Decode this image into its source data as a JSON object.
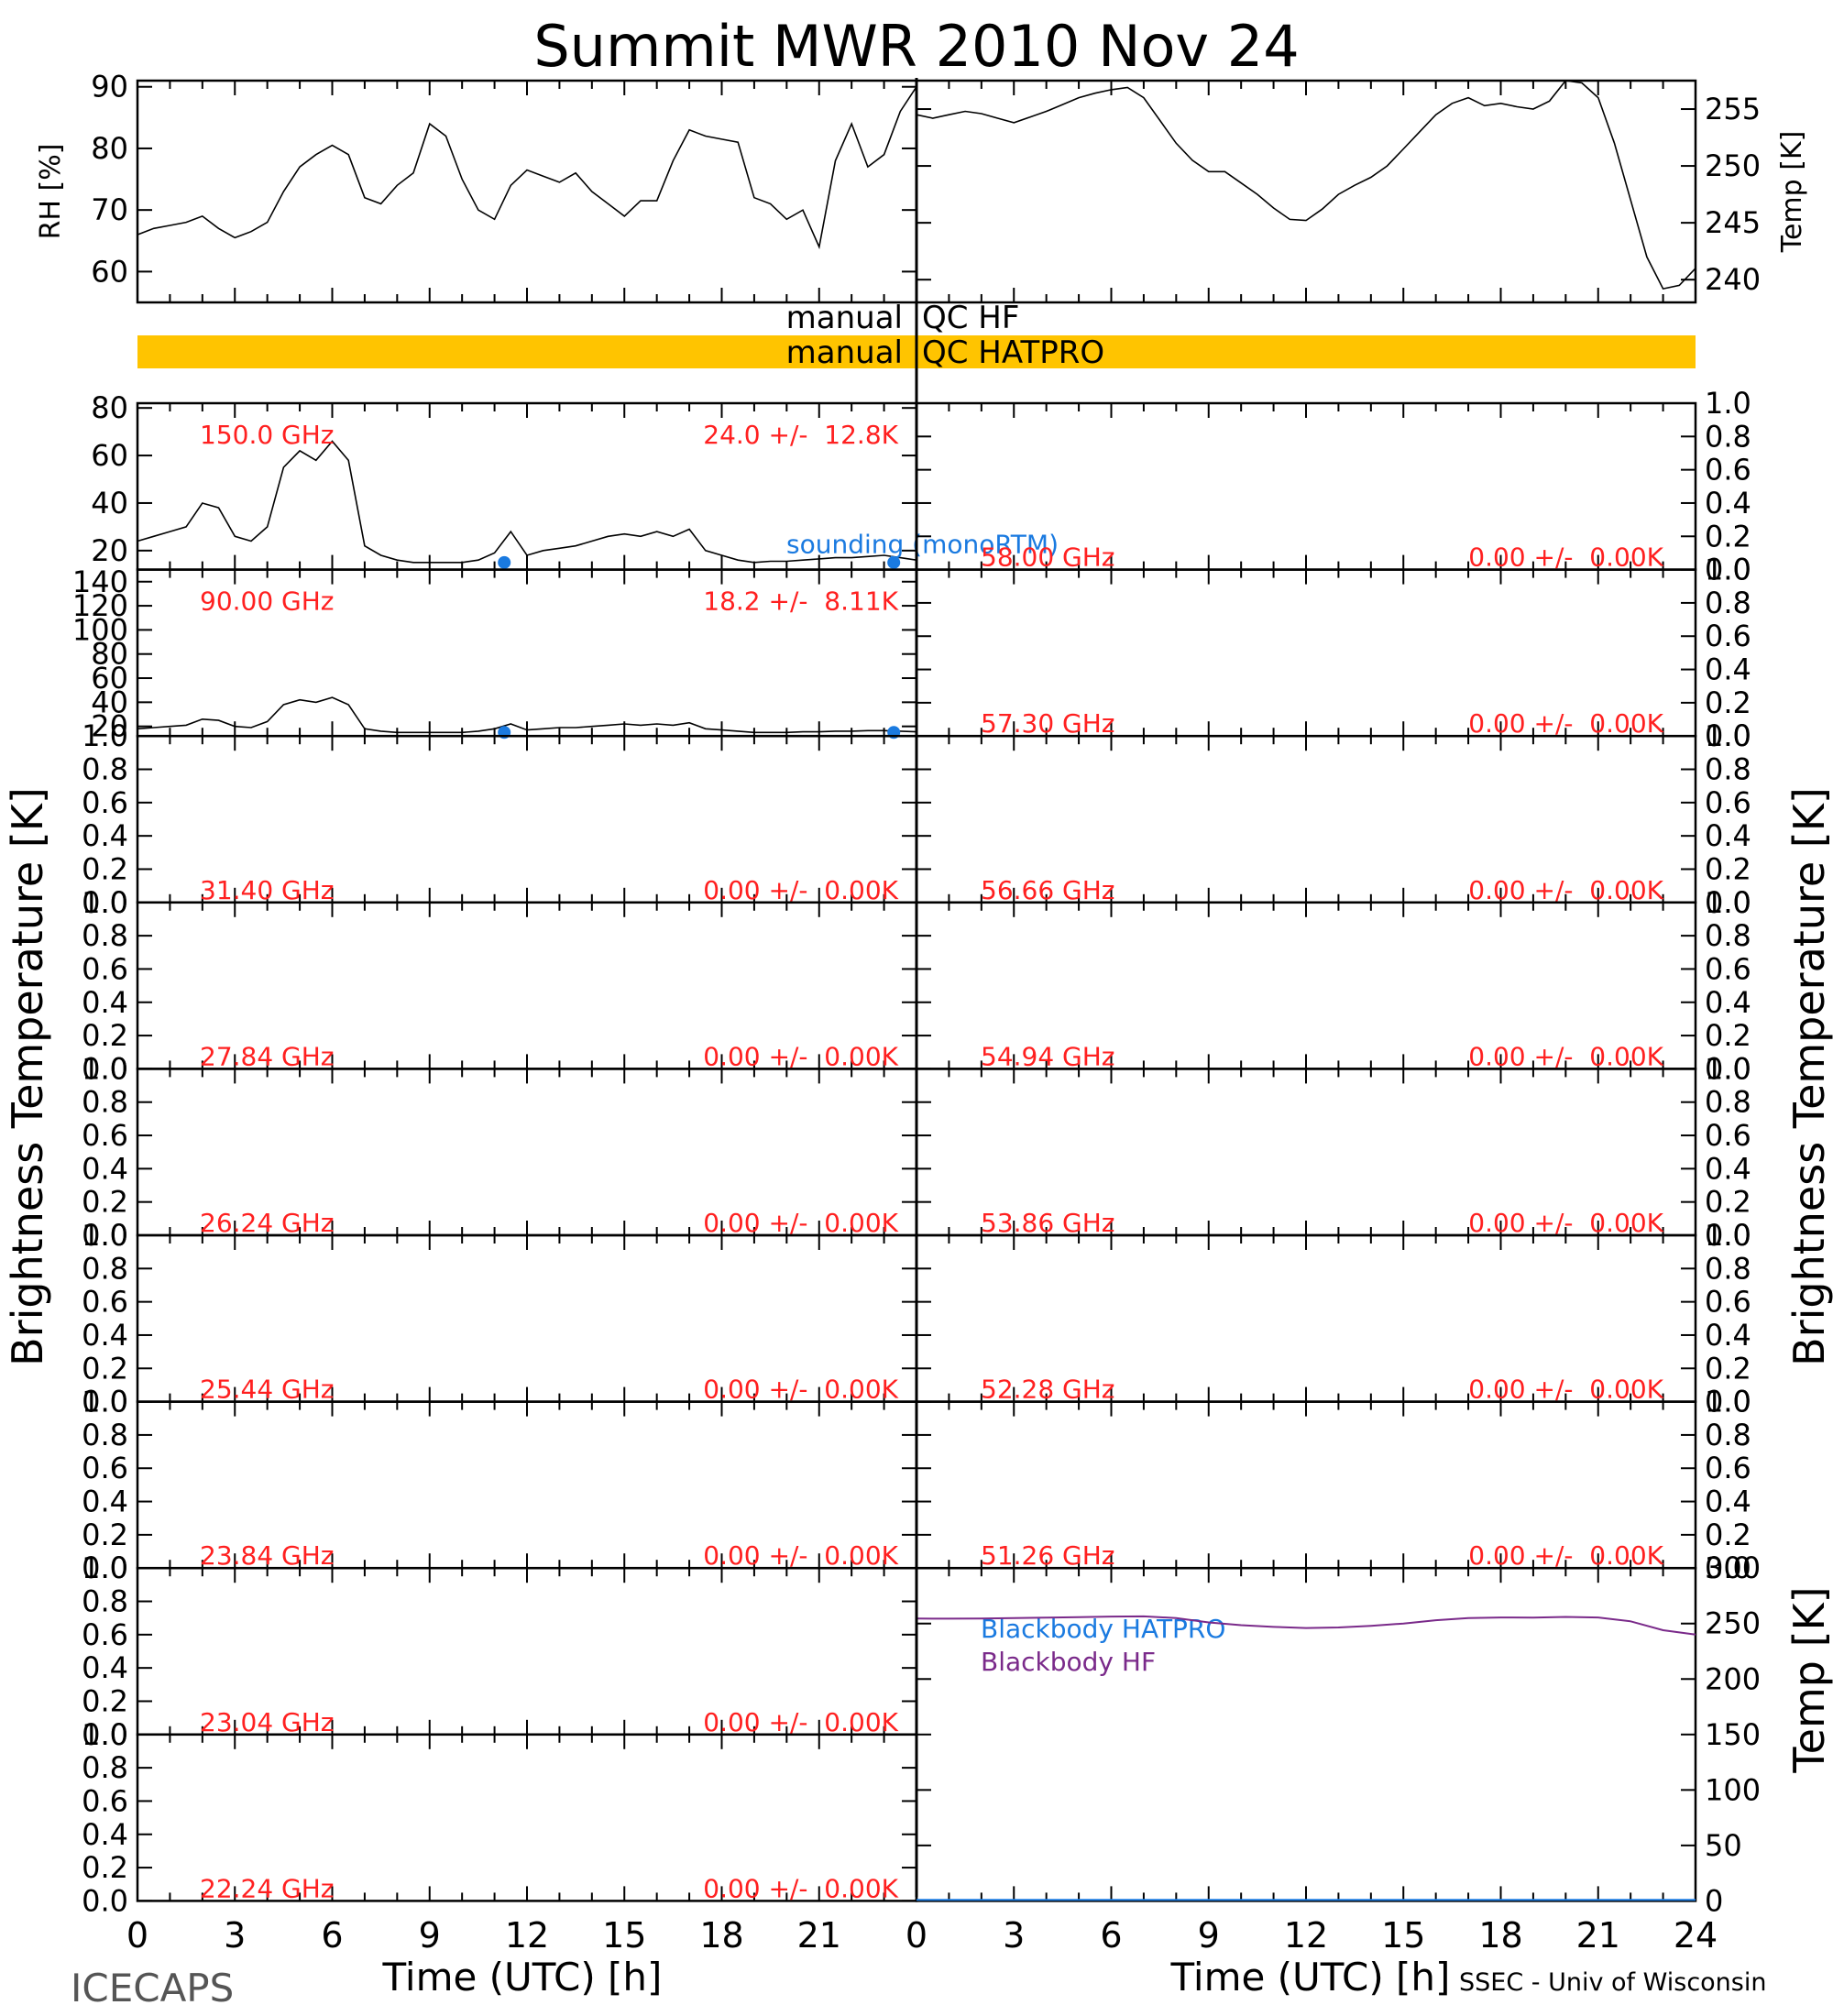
{
  "title": "Summit MWR 2010 Nov 24",
  "footer": {
    "left": "ICECAPS",
    "right": "SSEC - Univ of Wisconsin",
    "xlabel_left": "Time (UTC) [h]",
    "xlabel_right": "Time (UTC) [h]"
  },
  "colors": {
    "stat_text": "#ff2020",
    "sounding": "#1a7ae0",
    "bb_hatpro": "#1a7ae0",
    "bb_hf": "#7a2a8a",
    "qc_bar": "#ffc400"
  },
  "qc": {
    "row1_left": "manual",
    "row1_right": "QC HF",
    "row2_left": "manual",
    "row2_right": "QC HATPRO"
  },
  "side_labels": {
    "left": "Brightness Temperature [K]",
    "right": "Brightness Temperature [K]",
    "right_bottom": "Temp [K]"
  },
  "chart_data": [
    {
      "id": "rh",
      "type": "line",
      "ylabel": "RH [%]",
      "xlim": [
        0,
        24
      ],
      "ylim": [
        55,
        91
      ],
      "yticks": [
        60,
        70,
        80,
        90
      ],
      "x": [
        0,
        0.5,
        1,
        1.5,
        2,
        2.5,
        3,
        3.5,
        4,
        4.5,
        5,
        5.5,
        6,
        6.5,
        7,
        7.5,
        8,
        8.5,
        9,
        9.5,
        10,
        10.5,
        11,
        11.5,
        12,
        12.5,
        13,
        13.5,
        14,
        14.5,
        15,
        15.5,
        16,
        16.5,
        17,
        17.5,
        18,
        18.5,
        19,
        19.5,
        20,
        20.5,
        21,
        21.5,
        22,
        22.5,
        23,
        23.5,
        24
      ],
      "y": [
        66,
        67,
        67.5,
        68,
        69,
        67,
        65.5,
        66.5,
        68,
        73,
        77,
        79,
        80.5,
        79,
        72,
        71,
        74,
        76,
        84,
        82,
        75,
        70,
        68.5,
        74,
        76.5,
        75.5,
        74.5,
        76,
        73,
        71,
        69,
        71.5,
        71.5,
        78,
        83,
        82,
        81.5,
        81,
        72,
        71,
        68.5,
        70,
        64,
        78,
        84,
        77,
        79,
        86,
        90
      ]
    },
    {
      "id": "temp",
      "type": "line",
      "ylabel": "Temp [K]",
      "xlim": [
        0,
        24
      ],
      "ylim": [
        238,
        257.5
      ],
      "yticks": [
        240,
        245,
        250,
        255
      ],
      "x": [
        0,
        0.5,
        1,
        1.5,
        2,
        2.5,
        3,
        3.5,
        4,
        4.5,
        5,
        5.5,
        6,
        6.5,
        7,
        7.5,
        8,
        8.5,
        9,
        9.5,
        10,
        10.5,
        11,
        11.5,
        12,
        12.5,
        13,
        13.5,
        14,
        14.5,
        15,
        15.5,
        16,
        16.5,
        17,
        17.5,
        18,
        18.5,
        19,
        19.5,
        20,
        20.5,
        21,
        21.5,
        22,
        22.5,
        23,
        23.5,
        24
      ],
      "y": [
        254.5,
        254.2,
        254.5,
        254.8,
        254.6,
        254.2,
        253.8,
        254.3,
        254.8,
        255.4,
        256,
        256.4,
        256.7,
        256.9,
        256,
        254,
        252,
        250.5,
        249.5,
        249.5,
        248.5,
        247.5,
        246.3,
        245.3,
        245.2,
        246.2,
        247.5,
        248.3,
        249,
        250,
        251.5,
        253,
        254.5,
        255.5,
        256,
        255.3,
        255.5,
        255.2,
        255,
        255.7,
        257.5,
        257.3,
        256,
        252,
        247,
        242,
        239.2,
        239.5,
        241
      ]
    },
    {
      "id": "ch-150",
      "type": "line",
      "label": "150.0 GHz",
      "stats": "24.0 +/-  12.8K",
      "xlim": [
        0,
        24
      ],
      "ylim": [
        12,
        82
      ],
      "yticks": [
        20,
        40,
        60,
        80
      ],
      "x": [
        0,
        0.5,
        1,
        1.5,
        2,
        2.5,
        3,
        3.5,
        4,
        4.5,
        5,
        5.5,
        6,
        6.5,
        7,
        7.5,
        8,
        8.5,
        9,
        9.5,
        10,
        10.5,
        11,
        11.5,
        12,
        12.5,
        13,
        13.5,
        14,
        14.5,
        15,
        15.5,
        16,
        16.5,
        17,
        17.5,
        18,
        18.5,
        19,
        19.5,
        20,
        20.5,
        21,
        21.5,
        22,
        22.5,
        23,
        23.5,
        24
      ],
      "y": [
        24,
        26,
        28,
        30,
        40,
        38,
        26,
        24,
        30,
        55,
        62,
        58,
        66,
        58,
        22,
        18,
        16,
        15,
        15,
        15,
        15,
        16,
        19,
        28,
        18,
        20,
        21,
        22,
        24,
        26,
        27,
        26,
        28,
        26,
        29,
        20,
        18,
        16,
        15,
        15.5,
        15.5,
        16,
        16.5,
        17,
        17,
        17.5,
        18,
        17,
        16
      ],
      "sounding_label": "sounding (monoRTM)",
      "sounding": {
        "x": [
          11.3,
          23.3
        ],
        "y": [
          15,
          15
        ]
      }
    },
    {
      "id": "ch-90",
      "type": "line",
      "label": "90.00 GHz",
      "stats": "18.2 +/-  8.11K",
      "xlim": [
        0,
        24
      ],
      "ylim": [
        12,
        150
      ],
      "yticks": [
        20,
        40,
        60,
        80,
        100,
        120,
        140
      ],
      "x": [
        0,
        0.5,
        1,
        1.5,
        2,
        2.5,
        3,
        3.5,
        4,
        4.5,
        5,
        5.5,
        6,
        6.5,
        7,
        7.5,
        8,
        8.5,
        9,
        9.5,
        10,
        10.5,
        11,
        11.5,
        12,
        12.5,
        13,
        13.5,
        14,
        14.5,
        15,
        15.5,
        16,
        16.5,
        17,
        17.5,
        18,
        18.5,
        19,
        19.5,
        20,
        20.5,
        21,
        21.5,
        22,
        22.5,
        23,
        23.5,
        24
      ],
      "y": [
        18,
        19,
        20,
        21,
        26,
        25,
        20,
        19,
        24,
        38,
        42,
        40,
        44,
        38,
        18,
        16,
        15,
        15,
        15,
        15,
        15,
        16,
        18,
        22,
        17,
        18,
        19,
        19,
        20,
        21,
        22,
        21,
        22,
        21,
        23,
        18,
        17,
        16,
        15,
        15,
        15,
        15.5,
        15.5,
        16,
        16,
        16.5,
        16.5,
        16,
        15.5
      ],
      "sounding": {
        "x": [
          11.3,
          23.3
        ],
        "y": [
          15,
          15
        ]
      }
    },
    {
      "id": "ch-31.40",
      "type": "line",
      "label": "31.40 GHz",
      "stats": "0.00 +/-  0.00K",
      "ylim": [
        0,
        1
      ]
    },
    {
      "id": "ch-27.84",
      "type": "line",
      "label": "27.84 GHz",
      "stats": "0.00 +/-  0.00K",
      "ylim": [
        0,
        1
      ]
    },
    {
      "id": "ch-26.24",
      "type": "line",
      "label": "26.24 GHz",
      "stats": "0.00 +/-  0.00K",
      "ylim": [
        0,
        1
      ]
    },
    {
      "id": "ch-25.44",
      "type": "line",
      "label": "25.44 GHz",
      "stats": "0.00 +/-  0.00K",
      "ylim": [
        0,
        1
      ]
    },
    {
      "id": "ch-23.84",
      "type": "line",
      "label": "23.84 GHz",
      "stats": "0.00 +/-  0.00K",
      "ylim": [
        0,
        1
      ]
    },
    {
      "id": "ch-23.04",
      "type": "line",
      "label": "23.04 GHz",
      "stats": "0.00 +/-  0.00K",
      "ylim": [
        0,
        1
      ]
    },
    {
      "id": "ch-22.24",
      "type": "line",
      "label": "22.24 GHz",
      "stats": "0.00 +/-  0.00K",
      "ylim": [
        0,
        1
      ]
    },
    {
      "id": "ch-58.00",
      "type": "line",
      "label": "58.00 GHz",
      "stats": "0.00 +/-  0.00K",
      "ylim": [
        0,
        1
      ]
    },
    {
      "id": "ch-57.30",
      "type": "line",
      "label": "57.30 GHz",
      "stats": "0.00 +/-  0.00K",
      "ylim": [
        0,
        1
      ]
    },
    {
      "id": "ch-56.66",
      "type": "line",
      "label": "56.66 GHz",
      "stats": "0.00 +/-  0.00K",
      "ylim": [
        0,
        1
      ]
    },
    {
      "id": "ch-54.94",
      "type": "line",
      "label": "54.94 GHz",
      "stats": "0.00 +/-  0.00K",
      "ylim": [
        0,
        1
      ]
    },
    {
      "id": "ch-53.86",
      "type": "line",
      "label": "53.86 GHz",
      "stats": "0.00 +/-  0.00K",
      "ylim": [
        0,
        1
      ]
    },
    {
      "id": "ch-52.28",
      "type": "line",
      "label": "52.28 GHz",
      "stats": "0.00 +/-  0.00K",
      "ylim": [
        0,
        1
      ]
    },
    {
      "id": "ch-51.26",
      "type": "line",
      "label": "51.26 GHz",
      "stats": "0.00 +/-  0.00K",
      "ylim": [
        0,
        1
      ]
    },
    {
      "id": "blackbody",
      "type": "line",
      "xlim": [
        0,
        24
      ],
      "ylim": [
        0,
        300
      ],
      "yticks": [
        0,
        50,
        100,
        150,
        200,
        250,
        300
      ],
      "series": [
        {
          "name": "Blackbody HATPRO",
          "x": [
            0,
            24
          ],
          "y": [
            1,
            1
          ]
        },
        {
          "name": "Blackbody HF",
          "x": [
            0,
            1,
            2,
            3,
            4,
            5,
            6,
            7,
            8,
            9,
            10,
            11,
            12,
            13,
            14,
            15,
            16,
            17,
            18,
            19,
            20,
            21,
            22,
            23,
            24
          ],
          "y": [
            254.5,
            254.4,
            254.6,
            254.9,
            255.3,
            255.8,
            256.3,
            256.5,
            255,
            251,
            248.5,
            247,
            246,
            246.5,
            248,
            250,
            253,
            255,
            255.5,
            255.4,
            256,
            255.5,
            252,
            244,
            240
          ]
        }
      ]
    }
  ],
  "x_axis": {
    "ticks": [
      "0",
      "3",
      "6",
      "9",
      "12",
      "15",
      "18",
      "21"
    ],
    "ticks_right": [
      "0",
      "3",
      "6",
      "9",
      "12",
      "15",
      "18",
      "21",
      "24"
    ]
  }
}
